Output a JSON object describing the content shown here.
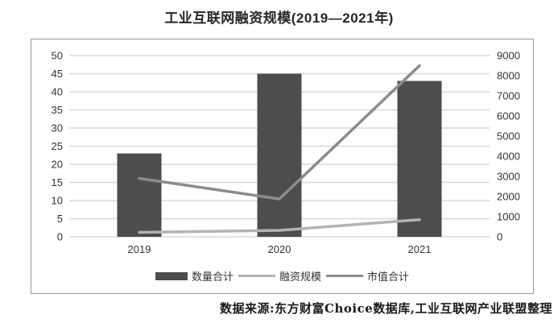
{
  "title": "工业互联网融资规模(2019—2021年)",
  "source_note": "数据来源:东方财富Choice数据库,工业互联网产业联盟整理",
  "chart_data": {
    "type": "combo-bar-line",
    "categories": [
      "2019",
      "2020",
      "2021"
    ],
    "series": [
      {
        "name": "数量合计",
        "type": "bar",
        "axis": "left",
        "color": "#4d4d4d",
        "values": [
          23,
          45,
          43
        ]
      },
      {
        "name": "融资规模",
        "type": "line",
        "axis": "right",
        "color": "#b3b3b3",
        "values": [
          220,
          320,
          850
        ]
      },
      {
        "name": "市值合计",
        "type": "line",
        "axis": "right",
        "color": "#8c8c8c",
        "values": [
          2900,
          1880,
          8500
        ]
      }
    ],
    "left_axis": {
      "min": 0,
      "max": 50,
      "step": 5,
      "ticks": [
        0,
        5,
        10,
        15,
        20,
        25,
        30,
        35,
        40,
        45,
        50
      ]
    },
    "right_axis": {
      "min": 0,
      "max": 9000,
      "step": 1000,
      "ticks": [
        0,
        1000,
        2000,
        3000,
        4000,
        5000,
        6000,
        7000,
        8000,
        9000
      ]
    },
    "grid": true,
    "legend_position": "bottom",
    "colors": {
      "gridline": "#d9d9d9",
      "axis_text": "#333333",
      "x_label_text": "#333333",
      "frame_border": "#999999"
    }
  }
}
